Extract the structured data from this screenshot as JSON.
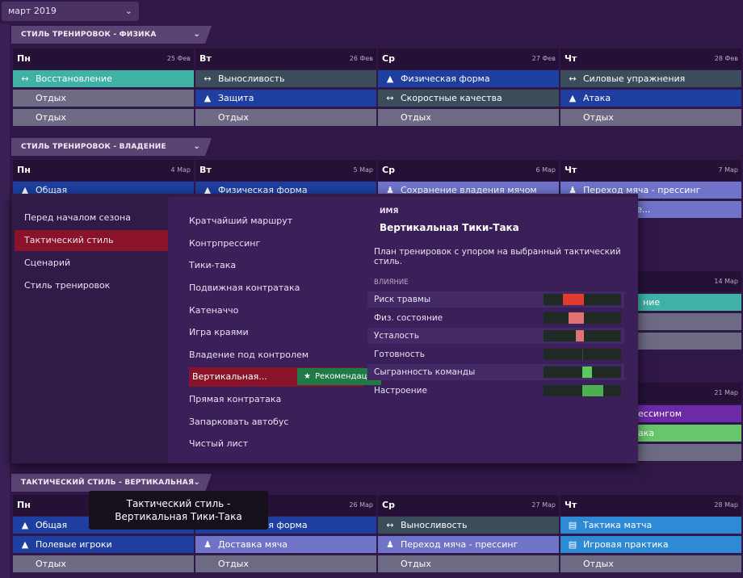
{
  "header": {
    "month": "март 2019"
  },
  "sections": [
    {
      "title": "СТИЛЬ ТРЕНИРОВОК - ФИЗИКА",
      "days": [
        {
          "name": "Пн",
          "date": "25 Фев",
          "sessions": [
            {
              "label": "Восстановление",
              "icon": "dumbbell-icon",
              "color": "#3fb2a5"
            },
            {
              "label": "Отдых",
              "icon": "",
              "color": "#6d6a84"
            },
            {
              "label": "Отдых",
              "icon": "",
              "color": "#6d6a84"
            }
          ]
        },
        {
          "name": "Вт",
          "date": "26 Фев",
          "sessions": [
            {
              "label": "Выносливость",
              "icon": "dumbbell-icon",
              "color": "#3b4d5a"
            },
            {
              "label": "Защита",
              "icon": "cone-icon",
              "color": "#1e3fa0"
            },
            {
              "label": "Отдых",
              "icon": "",
              "color": "#6d6a84"
            }
          ]
        },
        {
          "name": "Ср",
          "date": "27 Фев",
          "sessions": [
            {
              "label": "Физическая форма",
              "icon": "cone-icon",
              "color": "#1e3fa0"
            },
            {
              "label": "Скоростные качества",
              "icon": "dumbbell-icon",
              "color": "#3b4d5a"
            },
            {
              "label": "Отдых",
              "icon": "",
              "color": "#6d6a84"
            }
          ]
        },
        {
          "name": "Чт",
          "date": "28 Фев",
          "sessions": [
            {
              "label": "Силовые упражнения",
              "icon": "dumbbell-icon",
              "color": "#3b4d5a"
            },
            {
              "label": "Атака",
              "icon": "cone-icon",
              "color": "#1e3fa0"
            },
            {
              "label": "Отдых",
              "icon": "",
              "color": "#6d6a84"
            }
          ]
        }
      ]
    },
    {
      "title": "СТИЛЬ ТРЕНИРОВОК - ВЛАДЕНИЕ",
      "days": [
        {
          "name": "Пн",
          "date": "4 Мар",
          "sessions": [
            {
              "label": "Общая",
              "icon": "cone-icon",
              "color": "#1e3fa0"
            }
          ]
        },
        {
          "name": "Вт",
          "date": "5 Мар",
          "sessions": [
            {
              "label": "Физическая форма",
              "icon": "cone-icon",
              "color": "#1e3fa0"
            }
          ]
        },
        {
          "name": "Ср",
          "date": "6 Мар",
          "sessions": [
            {
              "label": "Сохранение владения мячом",
              "icon": "runner-icon",
              "color": "#6f74c9"
            }
          ]
        },
        {
          "name": "Чт",
          "date": "7 Мар",
          "sessions": [
            {
              "label": "Переход мяча - прессинг",
              "icon": "runner-icon",
              "color": "#6f74c9"
            },
            {
              "label": "а - закрытие...",
              "icon": "",
              "color": "#6f74c9"
            }
          ]
        }
      ]
    },
    {
      "title": "ТАКТИЧЕСКИЙ СТИЛЬ - ВЕРТИКАЛЬНАЯ ТИКИ...",
      "days": [
        {
          "name": "Пн",
          "date": "",
          "sessions": [
            {
              "label": "Общая",
              "icon": "cone-icon",
              "color": "#1e3fa0"
            },
            {
              "label": "Полевые игроки",
              "icon": "cone-icon",
              "color": "#1e3fa0"
            },
            {
              "label": "Отдых",
              "icon": "",
              "color": "#6d6a84"
            }
          ]
        },
        {
          "name": "",
          "date": "26 Мар",
          "sessions": [
            {
              "label": "Физическая форма",
              "icon": "cone-icon",
              "color": "#1e3fa0"
            },
            {
              "label": "Доставка мяча",
              "icon": "runner-icon",
              "color": "#6f74c9"
            },
            {
              "label": "Отдых",
              "icon": "",
              "color": "#6d6a84"
            }
          ]
        },
        {
          "name": "Ср",
          "date": "27 Мар",
          "sessions": [
            {
              "label": "Выносливость",
              "icon": "dumbbell-icon",
              "color": "#3b4d5a"
            },
            {
              "label": "Переход мяча - прессинг",
              "icon": "runner-icon",
              "color": "#6f74c9"
            },
            {
              "label": "Отдых",
              "icon": "",
              "color": "#6d6a84"
            }
          ]
        },
        {
          "name": "Чт",
          "date": "28 Мар",
          "sessions": [
            {
              "label": "Тактика матча",
              "icon": "clipboard-icon",
              "color": "#2f8ad6"
            },
            {
              "label": "Игровая практика",
              "icon": "clipboard-icon",
              "color": "#2f8ad6"
            },
            {
              "label": "Отдых",
              "icon": "",
              "color": "#6d6a84"
            }
          ]
        }
      ]
    }
  ],
  "peek": {
    "date_14": "14 Мар",
    "date_21": "21 Мар",
    "cell_a": "ние",
    "cell_b": "ессингом",
    "cell_c": "ака"
  },
  "popup": {
    "categories": [
      "Перед началом сезона",
      "Тактический стиль",
      "Сценарий",
      "Стиль тренировок"
    ],
    "active_category": 1,
    "styles": [
      "Кратчайший маршрут",
      "Контрпрессинг",
      "Тики-така",
      "Подвижная контратака",
      "Катеначчо",
      "Игра краями",
      "Владение под контролем",
      "Вертикальная...",
      "Прямая контратака",
      "Запарковать автобус",
      "Чистый лист"
    ],
    "active_style": 7,
    "recommend_label": "Рекомендация",
    "name_header": "ИМЯ",
    "selected_name": "Вертикальная Тики-Така",
    "description": "План тренировок с упором на выбранный тактический стиль.",
    "influence_header": "ВЛИЯНИЕ",
    "influence": [
      {
        "label": "Риск травмы",
        "value": 0.55,
        "color": "#e23a2e"
      },
      {
        "label": "Физ. состояние",
        "value": 0.4,
        "color": "#e07272"
      },
      {
        "label": "Усталость",
        "value": 0.2,
        "color": "#e07272"
      },
      {
        "label": "Готовность",
        "value": 0,
        "color": "#5cc95c"
      },
      {
        "label": "Сыгранность команды",
        "value": 0.25,
        "color": "#5cc95c"
      },
      {
        "label": "Настроение",
        "value": 0.55,
        "color": "#4caf50"
      }
    ]
  },
  "tooltip": {
    "text": "Тактический стиль - Вертикальная Тики-Така"
  }
}
